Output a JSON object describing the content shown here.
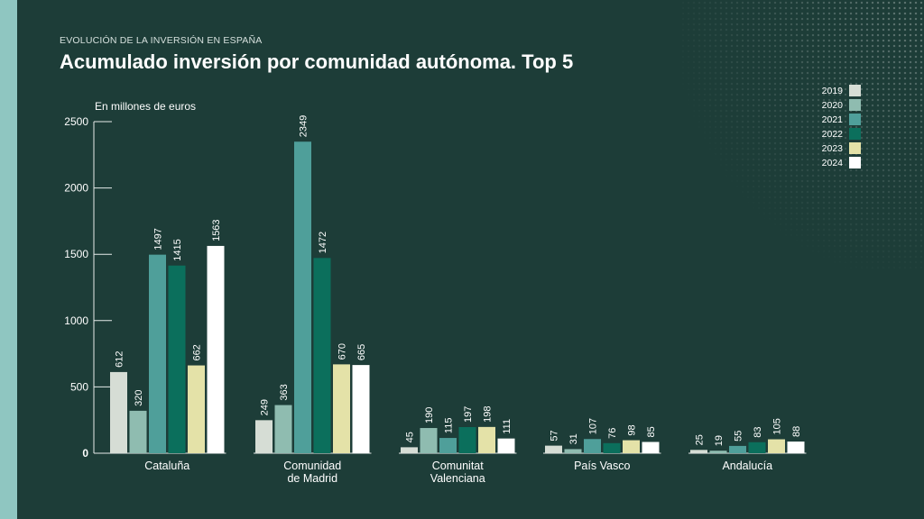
{
  "header": {
    "overline": "EVOLUCIÓN DE LA INVERSIÓN EN ESPAÑA",
    "title": "Acumulado inversión por comunidad autónoma. Top 5"
  },
  "colors": {
    "background": "#1d3d38",
    "stripe": "#8fc6c1",
    "text": "#ffffff",
    "series": [
      "#d6ddd5",
      "#8fbcb0",
      "#4f9f9a",
      "#0b6f5c",
      "#e4e2a8",
      "#ffffff"
    ]
  },
  "chart_data": {
    "type": "bar",
    "unit_label": "En millones de euros",
    "categories": [
      [
        "Cataluña"
      ],
      [
        "Comunidad",
        "de Madrid"
      ],
      [
        "Comunitat",
        "Valenciana"
      ],
      [
        "País Vasco"
      ],
      [
        "Andalucía"
      ]
    ],
    "yticks": [
      0,
      500,
      1000,
      1500,
      2000,
      2500
    ],
    "ylim": [
      0,
      2500
    ],
    "legend_position": "top-right",
    "series": [
      {
        "name": "2019",
        "values": [
          612,
          249,
          45,
          57,
          25
        ]
      },
      {
        "name": "2020",
        "values": [
          320,
          363,
          190,
          31,
          19
        ]
      },
      {
        "name": "2021",
        "values": [
          1497,
          2349,
          115,
          107,
          55
        ]
      },
      {
        "name": "2022",
        "values": [
          1415,
          1472,
          197,
          76,
          83
        ]
      },
      {
        "name": "2023",
        "values": [
          662,
          670,
          198,
          98,
          105
        ]
      },
      {
        "name": "2024",
        "values": [
          1563,
          665,
          111,
          85,
          88
        ]
      }
    ]
  }
}
